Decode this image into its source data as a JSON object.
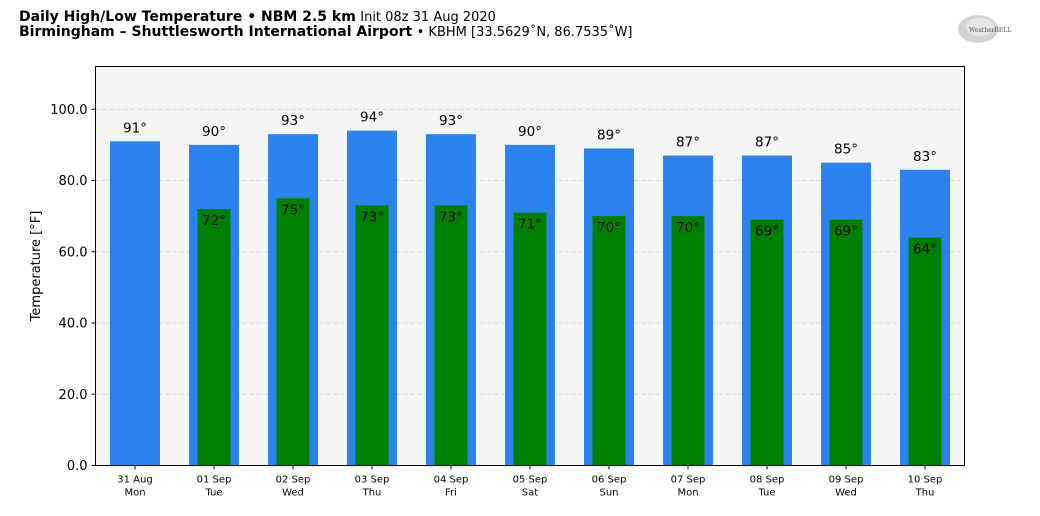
{
  "header": {
    "line1_bold": "Daily High/Low Temperature • NBM 2.5 km",
    "line1_normal": "Init 08z 31 Aug 2020",
    "line2_bold": "Birmingham – Shuttlesworth International Airport",
    "line2_normal": "• KBHM [33.5629˚N, 86.7535˚W]"
  },
  "logo": {
    "text": "WeatherBELL"
  },
  "chart_data": {
    "type": "bar",
    "ylabel": "Temperature [°F]",
    "ylim": [
      0,
      112
    ],
    "yticks": [
      0,
      20,
      40,
      60,
      80,
      100
    ],
    "ytick_labels": [
      "0.0",
      "20.0",
      "40.0",
      "60.0",
      "80.0",
      "100.0"
    ],
    "grid": true,
    "categories": [
      {
        "date": "31 Aug",
        "day": "Mon"
      },
      {
        "date": "01 Sep",
        "day": "Tue"
      },
      {
        "date": "02 Sep",
        "day": "Wed"
      },
      {
        "date": "03 Sep",
        "day": "Thu"
      },
      {
        "date": "04 Sep",
        "day": "Fri"
      },
      {
        "date": "05 Sep",
        "day": "Sat"
      },
      {
        "date": "06 Sep",
        "day": "Sun"
      },
      {
        "date": "07 Sep",
        "day": "Mon"
      },
      {
        "date": "08 Sep",
        "day": "Tue"
      },
      {
        "date": "09 Sep",
        "day": "Wed"
      },
      {
        "date": "10 Sep",
        "day": "Thu"
      }
    ],
    "series": [
      {
        "color": "#2b83ef",
        "values": [
          91,
          90,
          93,
          94,
          93,
          90,
          89,
          87,
          87,
          85,
          83
        ],
        "labels": [
          "91°",
          "90°",
          "93°",
          "94°",
          "93°",
          "90°",
          "89°",
          "87°",
          "87°",
          "85°",
          "83°"
        ]
      },
      {
        "color": "#008000",
        "values": [
          null,
          72,
          75,
          73,
          73,
          71,
          70,
          70,
          69,
          69,
          64
        ],
        "labels": [
          "",
          "72°",
          "75°",
          "73°",
          "73°",
          "71°",
          "70°",
          "70°",
          "69°",
          "69°",
          "64°"
        ]
      }
    ]
  }
}
